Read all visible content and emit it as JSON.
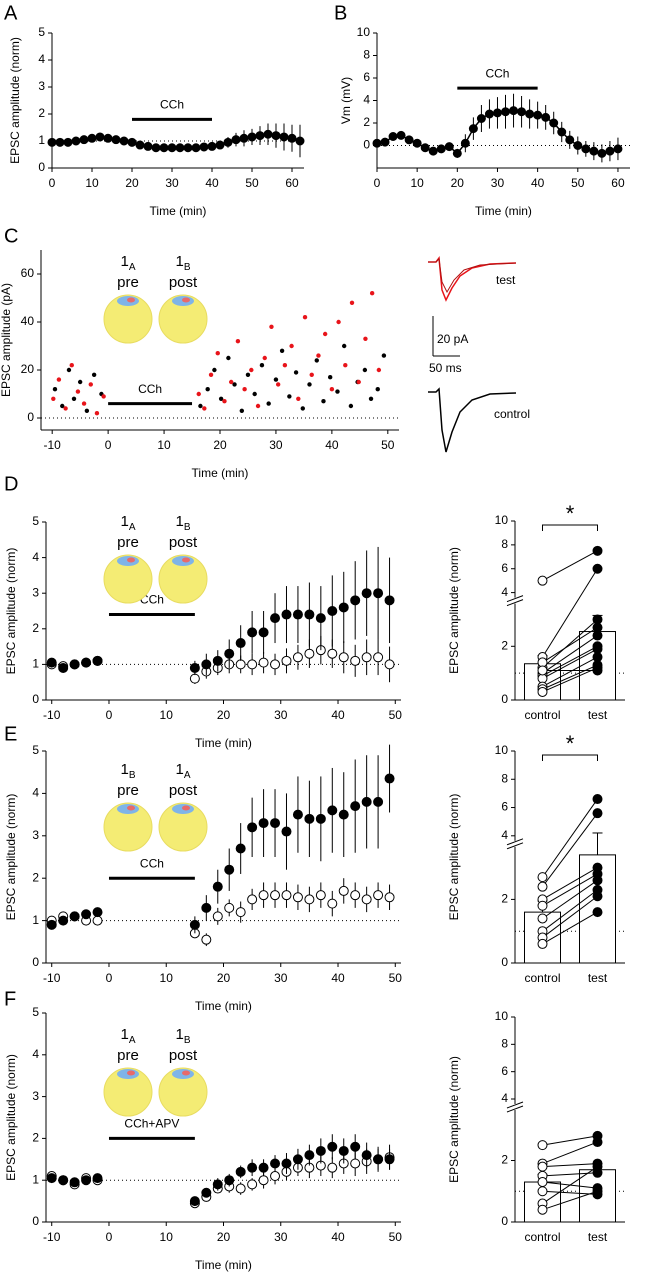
{
  "chart_data": [
    {
      "type": "line",
      "panel": "A",
      "xlabel": "Time (min)",
      "ylabel": "EPSC amplitude (norm)",
      "xlim": [
        0,
        63
      ],
      "xticks": [
        0,
        10,
        20,
        30,
        40,
        50,
        60
      ],
      "ylim": [
        0,
        5
      ],
      "yticks": [
        0,
        1,
        2,
        3,
        4,
        5
      ],
      "reference_line": 1,
      "connected": true,
      "marker_size": 4,
      "treatment": {
        "label": "CCh",
        "start": 20,
        "end": 40,
        "level": 1.8
      },
      "x": [
        0,
        2,
        4,
        6,
        8,
        10,
        12,
        14,
        16,
        18,
        20,
        22,
        24,
        26,
        28,
        30,
        32,
        34,
        36,
        38,
        40,
        42,
        44,
        46,
        48,
        50,
        52,
        54,
        56,
        58,
        60,
        62
      ],
      "series": [
        {
          "fill": "#000000",
          "values": [
            0.95,
            0.95,
            0.95,
            1.0,
            1.05,
            1.1,
            1.15,
            1.1,
            1.05,
            1.0,
            0.95,
            0.85,
            0.8,
            0.75,
            0.75,
            0.75,
            0.75,
            0.75,
            0.75,
            0.78,
            0.8,
            0.85,
            0.95,
            1.05,
            1.1,
            1.15,
            1.2,
            1.25,
            1.2,
            1.15,
            1.1,
            1.0
          ],
          "errors": [
            0.1,
            0.1,
            0.1,
            0.1,
            0.1,
            0.1,
            0.1,
            0.1,
            0.1,
            0.1,
            0.1,
            0.1,
            0.1,
            0.1,
            0.1,
            0.1,
            0.1,
            0.1,
            0.1,
            0.1,
            0.15,
            0.15,
            0.2,
            0.25,
            0.3,
            0.3,
            0.35,
            0.4,
            0.45,
            0.5,
            0.5,
            0.6
          ]
        }
      ]
    },
    {
      "type": "line",
      "panel": "B",
      "xlabel": "Time (min)",
      "ylabel": "Vm (mV)",
      "xlim": [
        0,
        63
      ],
      "xticks": [
        0,
        10,
        20,
        30,
        40,
        50,
        60
      ],
      "ylim": [
        -2,
        10
      ],
      "yticks": [
        0,
        2,
        4,
        6,
        8,
        10
      ],
      "reference_line": 0,
      "connected": true,
      "marker_size": 4,
      "treatment": {
        "label": "CCh",
        "start": 20,
        "end": 40,
        "level": 5.1
      },
      "x": [
        0,
        2,
        4,
        6,
        8,
        10,
        12,
        14,
        16,
        18,
        20,
        22,
        24,
        26,
        28,
        30,
        32,
        34,
        36,
        38,
        40,
        42,
        44,
        46,
        48,
        50,
        52,
        54,
        56,
        58,
        60
      ],
      "series": [
        {
          "fill": "#000000",
          "values": [
            0.2,
            0.3,
            0.8,
            0.9,
            0.5,
            0.2,
            -0.2,
            -0.5,
            -0.3,
            -0.1,
            -0.7,
            0.2,
            1.5,
            2.4,
            2.8,
            2.9,
            3.0,
            3.1,
            3.0,
            2.8,
            2.7,
            2.5,
            2.0,
            1.2,
            0.5,
            0.0,
            -0.3,
            -0.5,
            -0.7,
            -0.5,
            -0.3
          ],
          "errors": [
            0.3,
            0.3,
            0.3,
            0.3,
            0.3,
            0.3,
            0.3,
            0.3,
            0.3,
            0.3,
            0.4,
            0.8,
            1.0,
            1.2,
            1.3,
            1.4,
            1.5,
            1.5,
            1.4,
            1.3,
            1.2,
            1.1,
            1.0,
            0.9,
            0.8,
            0.8,
            0.7,
            0.8,
            0.8,
            0.9,
            1.0
          ]
        }
      ]
    },
    {
      "type": "scatter",
      "panel": "C",
      "xlabel": "Time (min)",
      "ylabel": "EPSC amplitude (pA)",
      "xlim": [
        -12,
        52
      ],
      "xticks": [
        -10,
        0,
        10,
        20,
        30,
        40,
        50
      ],
      "ylim": [
        -5,
        70
      ],
      "yticks": [
        0,
        20,
        40,
        60
      ],
      "reference_line": 0,
      "marker_size": 2.2,
      "treatment": {
        "label": "CCh",
        "start": 0,
        "end": 15,
        "level": 6
      },
      "cells": [
        {
          "num": "1",
          "sub": "A",
          "role": "pre"
        },
        {
          "num": "1",
          "sub": "B",
          "role": "post"
        }
      ],
      "traces": {
        "test": "test",
        "control": "control",
        "scale_y": "20 pA",
        "scale_x": "50 ms"
      },
      "series": [
        {
          "color": "#000000",
          "x": [
            -9.5,
            -8.2,
            -7,
            -6.1,
            -5,
            -3.8,
            -2.5,
            -1.2,
            16.5,
            17.8,
            19,
            20.2,
            21.5,
            22.6,
            23.9,
            25,
            26.2,
            27.5,
            28.7,
            30,
            31.1,
            32.4,
            33.6,
            34.8,
            36,
            37.3,
            38.5,
            39.7,
            41,
            42.2,
            43.4,
            44.6,
            45.9,
            47,
            48.2,
            49.3
          ],
          "values": [
            12,
            5,
            20,
            8,
            15,
            3,
            18,
            10,
            5,
            12,
            20,
            8,
            25,
            14,
            3,
            18,
            10,
            22,
            6,
            16,
            28,
            9,
            19,
            4,
            14,
            24,
            7,
            17,
            11,
            30,
            5,
            15,
            20,
            8,
            12,
            26
          ]
        },
        {
          "color": "#e8141a",
          "x": [
            -9.8,
            -8.8,
            -7.6,
            -6.5,
            -5.4,
            -4.3,
            -3.1,
            -2,
            -0.8,
            16.2,
            17.2,
            18.4,
            19.6,
            20.8,
            22,
            23.2,
            24.4,
            25.6,
            26.8,
            28,
            29.2,
            30.4,
            31.6,
            32.8,
            34,
            35.2,
            36.4,
            37.6,
            38.8,
            40,
            41.2,
            42.4,
            43.6,
            44.8,
            46,
            47.2,
            48.4
          ],
          "values": [
            8,
            16,
            4,
            22,
            11,
            6,
            14,
            2,
            9,
            10,
            4,
            18,
            27,
            7,
            15,
            32,
            12,
            20,
            5,
            25,
            38,
            14,
            22,
            30,
            8,
            42,
            18,
            26,
            35,
            12,
            40,
            22,
            48,
            15,
            33,
            52,
            20
          ]
        }
      ]
    },
    {
      "type": "line",
      "panel": "D",
      "xlabel": "Time (min)",
      "ylabel": "EPSC amplitude (norm)",
      "xlim": [
        -11,
        51
      ],
      "xticks": [
        -10,
        0,
        10,
        20,
        30,
        40,
        50
      ],
      "ylim": [
        0,
        5
      ],
      "yticks": [
        0,
        1,
        2,
        3,
        4,
        5
      ],
      "reference_line": 1,
      "connected": false,
      "marker_size": 4.5,
      "treatment": {
        "label": "CCh",
        "start": 0,
        "end": 15,
        "level": 2.4
      },
      "cells": [
        {
          "num": "1",
          "sub": "A",
          "role": "pre"
        },
        {
          "num": "1",
          "sub": "B",
          "role": "post"
        }
      ],
      "x": [
        -10,
        -8,
        -6,
        -4,
        -2,
        15,
        17,
        19,
        21,
        23,
        25,
        27,
        29,
        31,
        33,
        35,
        37,
        39,
        41,
        43,
        45,
        47,
        49
      ],
      "series": [
        {
          "fill": "#ffffff",
          "values": [
            1.0,
            0.95,
            1.0,
            1.05,
            1.1,
            0.6,
            0.8,
            0.9,
            1.0,
            1.0,
            1.0,
            1.05,
            1.0,
            1.1,
            1.2,
            1.3,
            1.4,
            1.3,
            1.2,
            1.1,
            1.2,
            1.2,
            1.0
          ],
          "errors": [
            0.1,
            0.1,
            0.1,
            0.1,
            0.1,
            0.15,
            0.2,
            0.2,
            0.25,
            0.25,
            0.3,
            0.3,
            0.3,
            0.35,
            0.35,
            0.4,
            0.4,
            0.4,
            0.45,
            0.45,
            0.5,
            0.5,
            0.5
          ]
        },
        {
          "fill": "#000000",
          "values": [
            1.05,
            0.9,
            1.0,
            1.05,
            1.1,
            0.9,
            1.0,
            1.1,
            1.3,
            1.6,
            1.9,
            1.9,
            2.3,
            2.4,
            2.4,
            2.4,
            2.3,
            2.5,
            2.6,
            2.8,
            3.0,
            3.0,
            2.8
          ],
          "errors": [
            0.1,
            0.1,
            0.1,
            0.1,
            0.1,
            0.2,
            0.3,
            0.3,
            0.4,
            0.5,
            0.6,
            0.6,
            0.7,
            0.8,
            0.8,
            0.9,
            0.9,
            1.0,
            1.0,
            1.1,
            1.2,
            1.3,
            1.2
          ]
        }
      ]
    },
    {
      "type": "bar",
      "ylabel": "EPSC amplitude (norm)",
      "categories": [
        "control",
        "test"
      ],
      "ylim": [
        0,
        10
      ],
      "yticks": [
        0,
        2,
        4,
        6,
        8,
        10
      ],
      "axis_break": 4,
      "reference_line": 1,
      "values": [
        1.35,
        2.55
      ],
      "errors": [
        0.3,
        0.6
      ],
      "significance": "*",
      "control_points": [
        5.0,
        1.6,
        1.2,
        1.0,
        0.9,
        0.8,
        0.5,
        0.4,
        0.3,
        1.4,
        1.1
      ],
      "test_points": [
        7.5,
        6.0,
        3.0,
        2.4,
        2.0,
        1.9,
        1.6,
        1.3,
        1.2,
        2.7,
        1.1
      ]
    },
    {
      "type": "line",
      "panel": "E",
      "xlabel": "Time (min)",
      "ylabel": "EPSC amplitude (norm)",
      "xlim": [
        -11,
        51
      ],
      "xticks": [
        -10,
        0,
        10,
        20,
        30,
        40,
        50
      ],
      "ylim": [
        0,
        5
      ],
      "yticks": [
        0,
        1,
        2,
        3,
        4,
        5
      ],
      "reference_line": 1,
      "connected": false,
      "marker_size": 4.5,
      "treatment": {
        "label": "CCh",
        "start": 0,
        "end": 15,
        "level": 2.0
      },
      "cells": [
        {
          "num": "1",
          "sub": "B",
          "role": "pre"
        },
        {
          "num": "1",
          "sub": "A",
          "role": "post"
        }
      ],
      "x": [
        -10,
        -8,
        -6,
        -4,
        -2,
        15,
        17,
        19,
        21,
        23,
        25,
        27,
        29,
        31,
        33,
        35,
        37,
        39,
        41,
        43,
        45,
        47,
        49
      ],
      "series": [
        {
          "fill": "#ffffff",
          "values": [
            1.0,
            1.1,
            1.1,
            1.0,
            1.0,
            0.7,
            0.55,
            1.1,
            1.3,
            1.2,
            1.5,
            1.6,
            1.6,
            1.6,
            1.55,
            1.5,
            1.6,
            1.4,
            1.7,
            1.6,
            1.5,
            1.6,
            1.55
          ],
          "errors": [
            0.1,
            0.1,
            0.1,
            0.1,
            0.1,
            0.1,
            0.15,
            0.2,
            0.2,
            0.25,
            0.25,
            0.3,
            0.3,
            0.3,
            0.3,
            0.3,
            0.3,
            0.3,
            0.3,
            0.3,
            0.3,
            0.3,
            0.3
          ]
        },
        {
          "fill": "#000000",
          "values": [
            0.9,
            1.0,
            1.1,
            1.15,
            1.2,
            0.9,
            1.3,
            1.8,
            2.2,
            2.7,
            3.2,
            3.3,
            3.3,
            3.1,
            3.5,
            3.4,
            3.4,
            3.6,
            3.5,
            3.7,
            3.8,
            3.8,
            4.35
          ],
          "errors": [
            0.1,
            0.1,
            0.1,
            0.1,
            0.1,
            0.2,
            0.3,
            0.4,
            0.5,
            0.6,
            0.7,
            0.8,
            0.8,
            0.9,
            0.9,
            0.9,
            1.0,
            1.0,
            1.0,
            1.1,
            1.1,
            1.1,
            0.8
          ]
        }
      ]
    },
    {
      "type": "bar",
      "ylabel": "EPSC amplitude (norm)",
      "categories": [
        "control",
        "test"
      ],
      "ylim": [
        0,
        10
      ],
      "yticks": [
        0,
        2,
        4,
        6,
        8,
        10
      ],
      "axis_break": 4,
      "reference_line": 1,
      "values": [
        1.6,
        3.4
      ],
      "errors": [
        0.35,
        0.8
      ],
      "significance": "*",
      "control_points": [
        2.7,
        2.4,
        2.0,
        1.8,
        1.4,
        1.0,
        0.8,
        0.6
      ],
      "test_points": [
        6.6,
        5.6,
        3.0,
        2.8,
        2.6,
        2.3,
        2.1,
        1.6
      ]
    },
    {
      "type": "line",
      "panel": "F",
      "xlabel": "Time (min)",
      "ylabel": "EPSC amplitude (norm)",
      "xlim": [
        -11,
        51
      ],
      "xticks": [
        -10,
        0,
        10,
        20,
        30,
        40,
        50
      ],
      "ylim": [
        0,
        5
      ],
      "yticks": [
        0,
        1,
        2,
        3,
        4,
        5
      ],
      "reference_line": 1,
      "connected": false,
      "marker_size": 4.5,
      "treatment": {
        "label": "CCh+APV",
        "start": 0,
        "end": 15,
        "level": 2.0
      },
      "cells": [
        {
          "num": "1",
          "sub": "A",
          "role": "pre"
        },
        {
          "num": "1",
          "sub": "B",
          "role": "post"
        }
      ],
      "x": [
        -10,
        -8,
        -6,
        -4,
        -2,
        15,
        17,
        19,
        21,
        23,
        25,
        27,
        29,
        31,
        33,
        35,
        37,
        39,
        41,
        43,
        45,
        47,
        49
      ],
      "series": [
        {
          "fill": "#ffffff",
          "values": [
            1.1,
            1.0,
            0.9,
            1.05,
            1.0,
            0.45,
            0.6,
            0.8,
            0.85,
            0.8,
            0.9,
            1.0,
            1.1,
            1.2,
            1.3,
            1.3,
            1.35,
            1.3,
            1.4,
            1.4,
            1.45,
            1.5,
            1.55
          ],
          "errors": [
            0.1,
            0.1,
            0.1,
            0.1,
            0.1,
            0.1,
            0.1,
            0.1,
            0.15,
            0.15,
            0.15,
            0.2,
            0.2,
            0.2,
            0.2,
            0.25,
            0.25,
            0.25,
            0.25,
            0.3,
            0.3,
            0.3,
            0.3
          ]
        },
        {
          "fill": "#000000",
          "values": [
            1.05,
            1.0,
            0.95,
            1.0,
            1.05,
            0.5,
            0.7,
            0.9,
            1.0,
            1.2,
            1.3,
            1.3,
            1.4,
            1.4,
            1.5,
            1.6,
            1.7,
            1.8,
            1.7,
            1.8,
            1.6,
            1.5,
            1.5
          ],
          "errors": [
            0.1,
            0.1,
            0.1,
            0.1,
            0.1,
            0.1,
            0.1,
            0.15,
            0.15,
            0.15,
            0.2,
            0.2,
            0.2,
            0.25,
            0.25,
            0.25,
            0.3,
            0.3,
            0.3,
            0.3,
            0.3,
            0.25,
            0.25
          ]
        }
      ]
    },
    {
      "type": "bar",
      "ylabel": "EPSC amplitude (norm)",
      "categories": [
        "control",
        "test"
      ],
      "ylim": [
        0,
        10
      ],
      "yticks": [
        0,
        2,
        4,
        6,
        8,
        10
      ],
      "axis_break": 4,
      "reference_line": 1,
      "values": [
        1.3,
        1.7
      ],
      "errors": [
        0.25,
        0.2
      ],
      "control_points": [
        2.5,
        1.9,
        1.8,
        1.5,
        1.3,
        1.0,
        0.6,
        0.4
      ],
      "test_points": [
        2.8,
        2.6,
        1.9,
        1.6,
        1.1,
        0.9,
        1.8,
        1.0
      ]
    }
  ]
}
